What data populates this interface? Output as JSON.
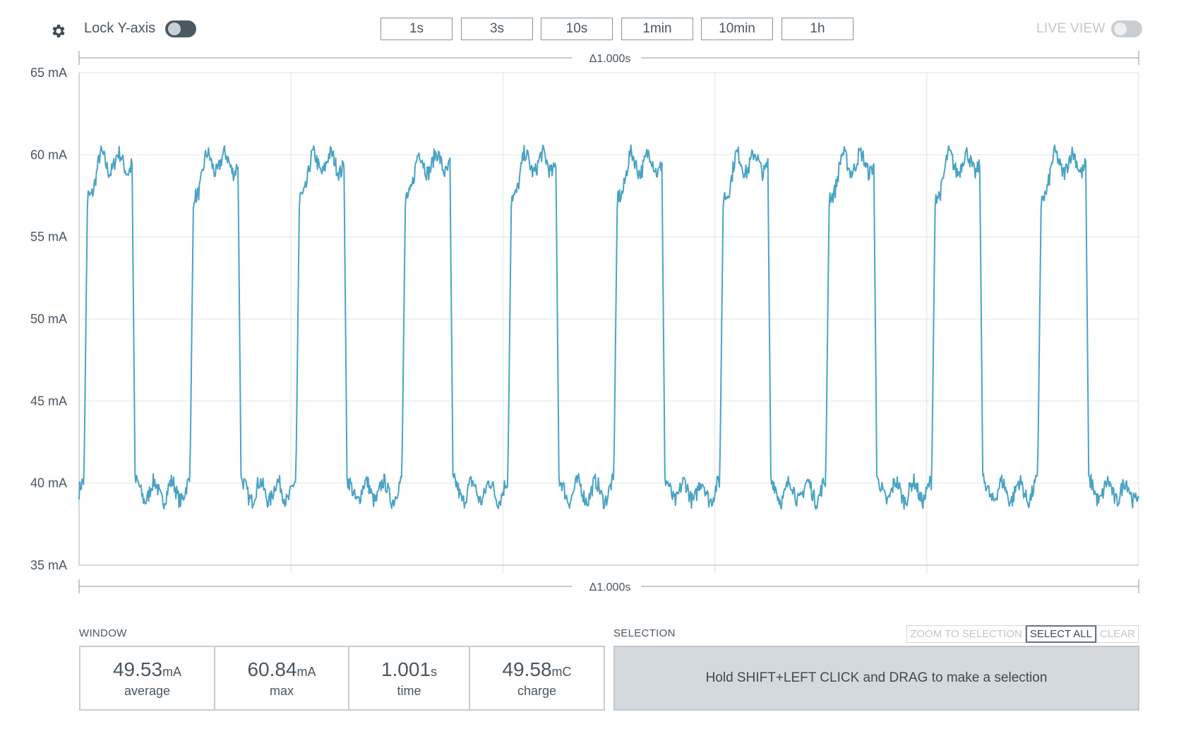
{
  "toolbar": {
    "settings_icon": "gear-icon",
    "lock_y_label": "Lock Y-axis",
    "lock_y_enabled": false,
    "time_buttons": [
      "1s",
      "3s",
      "10s",
      "1min",
      "10min",
      "1h"
    ],
    "live_view_label": "LIVE VIEW",
    "live_view_enabled": false
  },
  "chart_data": {
    "type": "line",
    "title": "",
    "xlabel": "",
    "ylabel": "",
    "y_unit": "mA",
    "ylim": [
      35,
      65
    ],
    "y_ticks": [
      "65 mA",
      "60 mA",
      "55 mA",
      "50 mA",
      "45 mA",
      "40 mA",
      "35 mA"
    ],
    "x_range_s": [
      0,
      1.0
    ],
    "window_label_top": "Δ1.000s",
    "window_label_bottom": "Δ1.000s",
    "grid": true,
    "series": [
      {
        "color": "#4aa3c4",
        "periods": 10,
        "period_s": 0.1,
        "low_mA": 39.5,
        "high_mA": 59.5,
        "low_ripple_mA": 1.0,
        "high_ripple_mA": 1.0
      }
    ]
  },
  "window": {
    "title": "WINDOW",
    "stats": [
      {
        "value": "49.53",
        "unit": "mA",
        "label": "average"
      },
      {
        "value": "60.84",
        "unit": "mA",
        "label": "max"
      },
      {
        "value": "1.001",
        "unit": "s",
        "label": "time"
      },
      {
        "value": "49.58",
        "unit": "mC",
        "label": "charge"
      }
    ]
  },
  "selection": {
    "title": "SELECTION",
    "zoom_label": "ZOOM TO SELECTION",
    "select_all_label": "SELECT ALL",
    "clear_label": "CLEAR",
    "hint": "Hold SHIFT+LEFT CLICK and DRAG to make a selection"
  }
}
